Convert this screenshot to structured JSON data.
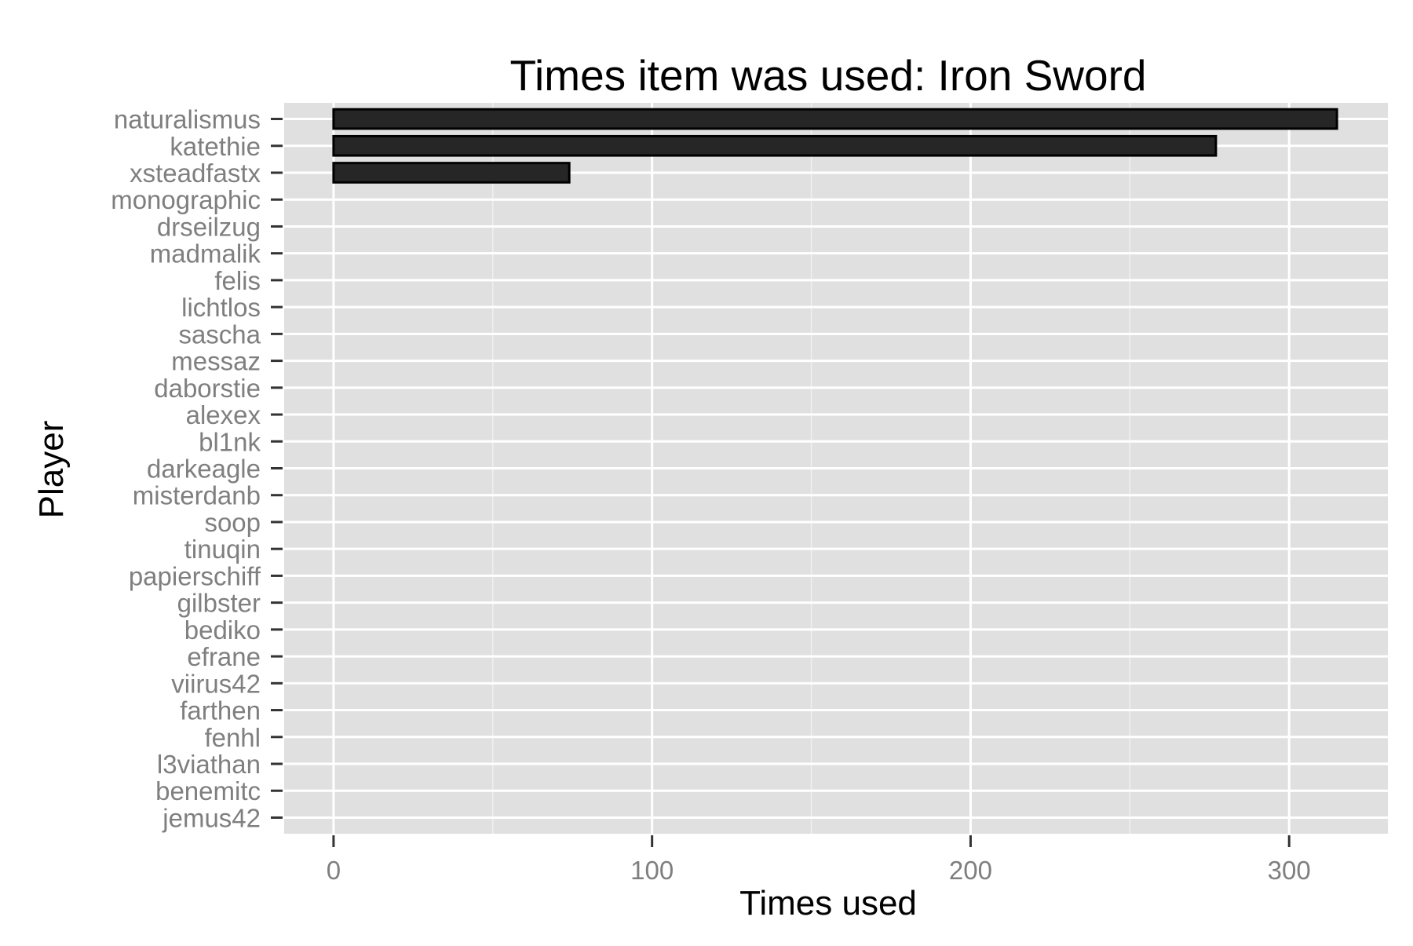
{
  "chart_data": {
    "type": "bar",
    "orientation": "horizontal",
    "title": "Times item was used: Iron Sword",
    "xlabel": "Times used",
    "ylabel": "Player",
    "categories": [
      "naturalismus",
      "katethie",
      "xsteadfastx",
      "monographic",
      "drseilzug",
      "madmalik",
      "felis",
      "lichtlos",
      "sascha",
      "messaz",
      "daborstie",
      "alexex",
      "bl1nk",
      "darkeagle",
      "misterdanb",
      "soop",
      "tinuqin",
      "papierschiff",
      "gilbster",
      "bediko",
      "efrane",
      "viirus42",
      "farthen",
      "fenhl",
      "l3viathan",
      "benemitc",
      "jemus42"
    ],
    "values": [
      315,
      277,
      74,
      0,
      0,
      0,
      0,
      0,
      0,
      0,
      0,
      0,
      0,
      0,
      0,
      0,
      0,
      0,
      0,
      0,
      0,
      0,
      0,
      0,
      0,
      0,
      0
    ],
    "xlim": [
      -15.5,
      331
    ],
    "xticks": [
      0,
      100,
      200,
      300
    ],
    "xtick_labels": [
      "0",
      "100",
      "200",
      "300"
    ],
    "grid": true,
    "legend": "none",
    "colors": {
      "panel_background": "#e0e0e0",
      "grid_major": "#ffffff",
      "grid_minor": "#f0f0f0",
      "bar_fill": "#262626",
      "bar_stroke": "#000000",
      "tick_label": "#7f7f7f",
      "axis_tick": "#333333",
      "title": "#000000"
    }
  }
}
